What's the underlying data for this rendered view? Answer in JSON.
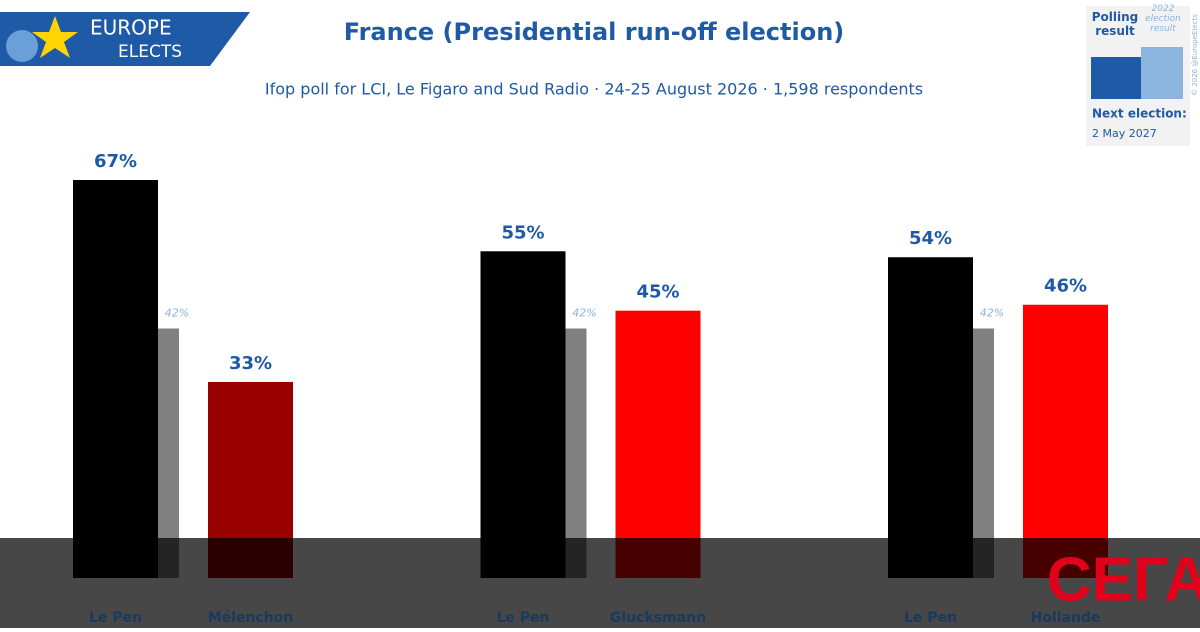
{
  "logo": {
    "line1": "EUROPE",
    "line2": "ELECTS"
  },
  "legend": {
    "polling": "Polling result",
    "previous": "2022 election result",
    "copyright": "© 2026 @EuropeElects",
    "next_label": "Next election:",
    "next_date": "2 May 2027"
  },
  "watermark": "СЕГА",
  "chart_data": {
    "type": "bar",
    "title": "France (Presidential run-off election)",
    "subtitle": "Ifop poll for LCI, Le Figaro and Sud Radio · 24-25 August 2026 · 1,598 respondents",
    "groups": [
      {
        "categories": [
          "Le Pen",
          "Mélenchon"
        ],
        "values": [
          67,
          33
        ],
        "value_labels": [
          "67%",
          "33%"
        ],
        "colors": [
          "#000000",
          "#990000"
        ],
        "previous": 42,
        "previous_label": "42%"
      },
      {
        "categories": [
          "Le Pen",
          "Glucksmann"
        ],
        "values": [
          55,
          45
        ],
        "value_labels": [
          "55%",
          "45%"
        ],
        "colors": [
          "#000000",
          "#ff0000"
        ],
        "previous": 42,
        "previous_label": "42%"
      },
      {
        "categories": [
          "Le Pen",
          "Hollande"
        ],
        "values": [
          54,
          46
        ],
        "value_labels": [
          "54%",
          "46%"
        ],
        "colors": [
          "#000000",
          "#ff0000"
        ],
        "previous": 42,
        "previous_label": "42%"
      }
    ],
    "previous_color": "#808080"
  }
}
